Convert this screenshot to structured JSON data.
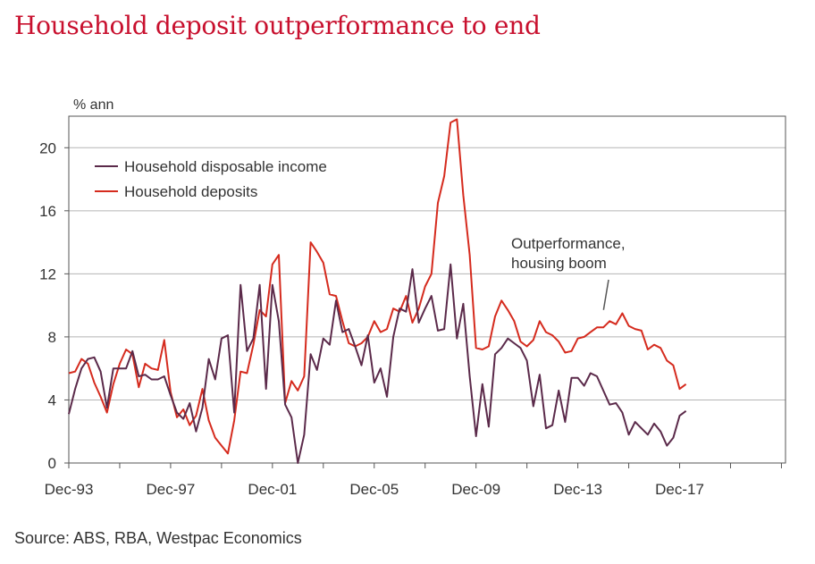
{
  "title": "Household deposit outperformance to end",
  "source": "Source: ABS, RBA, Westpac Economics",
  "chart_data": {
    "type": "line",
    "ylabel": "% ann",
    "ylim": [
      0,
      22
    ],
    "yticks": [
      0,
      4,
      8,
      12,
      16,
      20
    ],
    "xlim": [
      1993.92,
      2022.08
    ],
    "xticks": [
      {
        "label": "Dec-93",
        "x": 1993.92
      },
      {
        "label": "Dec-97",
        "x": 1997.92
      },
      {
        "label": "Dec-01",
        "x": 2001.92
      },
      {
        "label": "Dec-05",
        "x": 2005.92
      },
      {
        "label": "Dec-09",
        "x": 2009.92
      },
      {
        "label": "Dec-13",
        "x": 2013.92
      },
      {
        "label": "Dec-17",
        "x": 2017.92
      }
    ],
    "grid": true,
    "legend_position": "top-left",
    "annotation": {
      "lines": [
        "Outperformance,",
        "housing boom"
      ],
      "x": 2015.0,
      "y": 9.6
    },
    "series": [
      {
        "name": "Household disposable income",
        "color": "#5b2a4a",
        "points": [
          [
            1993.92,
            3.1
          ],
          [
            1994.17,
            4.7
          ],
          [
            1994.42,
            6.0
          ],
          [
            1994.67,
            6.6
          ],
          [
            1994.92,
            6.7
          ],
          [
            1995.17,
            5.8
          ],
          [
            1995.42,
            3.5
          ],
          [
            1995.67,
            6.0
          ],
          [
            1995.92,
            6.0
          ],
          [
            1996.17,
            6.0
          ],
          [
            1996.42,
            7.1
          ],
          [
            1996.67,
            5.5
          ],
          [
            1996.92,
            5.6
          ],
          [
            1997.17,
            5.3
          ],
          [
            1997.42,
            5.3
          ],
          [
            1997.67,
            5.5
          ],
          [
            1997.92,
            4.3
          ],
          [
            1998.17,
            3.2
          ],
          [
            1998.42,
            2.8
          ],
          [
            1998.67,
            3.8
          ],
          [
            1998.92,
            2.0
          ],
          [
            1999.17,
            3.5
          ],
          [
            1999.42,
            6.6
          ],
          [
            1999.67,
            5.3
          ],
          [
            1999.92,
            7.9
          ],
          [
            2000.17,
            8.1
          ],
          [
            2000.42,
            3.2
          ],
          [
            2000.67,
            11.3
          ],
          [
            2000.92,
            7.1
          ],
          [
            2001.17,
            7.9
          ],
          [
            2001.42,
            11.3
          ],
          [
            2001.67,
            4.7
          ],
          [
            2001.92,
            11.3
          ],
          [
            2002.17,
            9.0
          ],
          [
            2002.42,
            3.7
          ],
          [
            2002.67,
            2.9
          ],
          [
            2002.92,
            0.0
          ],
          [
            2003.17,
            1.8
          ],
          [
            2003.42,
            6.9
          ],
          [
            2003.67,
            5.9
          ],
          [
            2003.92,
            7.9
          ],
          [
            2004.17,
            7.5
          ],
          [
            2004.42,
            10.3
          ],
          [
            2004.67,
            8.3
          ],
          [
            2004.92,
            8.5
          ],
          [
            2005.17,
            7.4
          ],
          [
            2005.42,
            6.2
          ],
          [
            2005.67,
            8.1
          ],
          [
            2005.92,
            5.1
          ],
          [
            2006.17,
            6.0
          ],
          [
            2006.42,
            4.2
          ],
          [
            2006.67,
            8.0
          ],
          [
            2006.92,
            9.8
          ],
          [
            2007.17,
            9.6
          ],
          [
            2007.42,
            12.3
          ],
          [
            2007.67,
            8.9
          ],
          [
            2007.92,
            9.8
          ],
          [
            2008.17,
            10.6
          ],
          [
            2008.42,
            8.4
          ],
          [
            2008.67,
            8.5
          ],
          [
            2008.92,
            12.6
          ],
          [
            2009.17,
            7.9
          ],
          [
            2009.42,
            10.1
          ],
          [
            2009.67,
            5.5
          ],
          [
            2009.92,
            1.7
          ],
          [
            2010.17,
            5.0
          ],
          [
            2010.42,
            2.3
          ],
          [
            2010.67,
            6.9
          ],
          [
            2010.92,
            7.3
          ],
          [
            2011.17,
            7.9
          ],
          [
            2011.42,
            7.6
          ],
          [
            2011.67,
            7.3
          ],
          [
            2011.92,
            6.5
          ],
          [
            2012.17,
            3.6
          ],
          [
            2012.42,
            5.6
          ],
          [
            2012.67,
            2.2
          ],
          [
            2012.92,
            2.4
          ],
          [
            2013.17,
            4.6
          ],
          [
            2013.42,
            2.6
          ],
          [
            2013.67,
            5.4
          ],
          [
            2013.92,
            5.4
          ],
          [
            2014.17,
            4.9
          ],
          [
            2014.42,
            5.7
          ],
          [
            2014.67,
            5.5
          ],
          [
            2014.92,
            4.6
          ],
          [
            2015.17,
            3.7
          ],
          [
            2015.42,
            3.8
          ],
          [
            2015.67,
            3.2
          ],
          [
            2015.92,
            1.8
          ],
          [
            2016.17,
            2.6
          ],
          [
            2016.42,
            2.2
          ],
          [
            2016.67,
            1.8
          ],
          [
            2016.92,
            2.5
          ],
          [
            2017.17,
            2.0
          ],
          [
            2017.42,
            1.1
          ],
          [
            2017.67,
            1.6
          ],
          [
            2017.92,
            3.0
          ],
          [
            2018.17,
            3.3
          ]
        ]
      },
      {
        "name": "Household deposits",
        "color": "#d52b1e",
        "points": [
          [
            1993.92,
            5.7
          ],
          [
            1994.17,
            5.8
          ],
          [
            1994.42,
            6.6
          ],
          [
            1994.67,
            6.3
          ],
          [
            1994.92,
            5.1
          ],
          [
            1995.17,
            4.2
          ],
          [
            1995.42,
            3.2
          ],
          [
            1995.67,
            5.0
          ],
          [
            1995.92,
            6.3
          ],
          [
            1996.17,
            7.2
          ],
          [
            1996.42,
            6.9
          ],
          [
            1996.67,
            4.8
          ],
          [
            1996.92,
            6.3
          ],
          [
            1997.17,
            6.0
          ],
          [
            1997.42,
            5.9
          ],
          [
            1997.67,
            7.8
          ],
          [
            1997.92,
            4.5
          ],
          [
            1998.17,
            2.9
          ],
          [
            1998.42,
            3.4
          ],
          [
            1998.67,
            2.4
          ],
          [
            1998.92,
            3.0
          ],
          [
            1999.17,
            4.7
          ],
          [
            1999.42,
            2.7
          ],
          [
            1999.67,
            1.6
          ],
          [
            1999.92,
            1.1
          ],
          [
            2000.17,
            0.6
          ],
          [
            2000.42,
            2.7
          ],
          [
            2000.67,
            5.8
          ],
          [
            2000.92,
            5.7
          ],
          [
            2001.17,
            7.5
          ],
          [
            2001.42,
            9.7
          ],
          [
            2001.67,
            9.3
          ],
          [
            2001.92,
            12.6
          ],
          [
            2002.17,
            13.2
          ],
          [
            2002.42,
            3.8
          ],
          [
            2002.67,
            5.2
          ],
          [
            2002.92,
            4.6
          ],
          [
            2003.17,
            5.5
          ],
          [
            2003.42,
            14.0
          ],
          [
            2003.67,
            13.4
          ],
          [
            2003.92,
            12.7
          ],
          [
            2004.17,
            10.7
          ],
          [
            2004.42,
            10.6
          ],
          [
            2004.67,
            9.0
          ],
          [
            2004.92,
            7.6
          ],
          [
            2005.17,
            7.4
          ],
          [
            2005.42,
            7.6
          ],
          [
            2005.67,
            8.0
          ],
          [
            2005.92,
            9.0
          ],
          [
            2006.17,
            8.3
          ],
          [
            2006.42,
            8.5
          ],
          [
            2006.67,
            9.8
          ],
          [
            2006.92,
            9.6
          ],
          [
            2007.17,
            10.6
          ],
          [
            2007.42,
            8.9
          ],
          [
            2007.67,
            9.8
          ],
          [
            2007.92,
            11.2
          ],
          [
            2008.17,
            12.0
          ],
          [
            2008.42,
            16.5
          ],
          [
            2008.67,
            18.2
          ],
          [
            2008.92,
            21.6
          ],
          [
            2009.17,
            21.8
          ],
          [
            2009.42,
            17.0
          ],
          [
            2009.67,
            13.2
          ],
          [
            2009.92,
            7.3
          ],
          [
            2010.17,
            7.2
          ],
          [
            2010.42,
            7.4
          ],
          [
            2010.67,
            9.3
          ],
          [
            2010.92,
            10.3
          ],
          [
            2011.17,
            9.7
          ],
          [
            2011.42,
            9.0
          ],
          [
            2011.67,
            7.7
          ],
          [
            2011.92,
            7.4
          ],
          [
            2012.17,
            7.8
          ],
          [
            2012.42,
            9.0
          ],
          [
            2012.67,
            8.3
          ],
          [
            2012.92,
            8.1
          ],
          [
            2013.17,
            7.7
          ],
          [
            2013.42,
            7.0
          ],
          [
            2013.67,
            7.1
          ],
          [
            2013.92,
            7.9
          ],
          [
            2014.17,
            8.0
          ],
          [
            2014.42,
            8.3
          ],
          [
            2014.67,
            8.6
          ],
          [
            2014.92,
            8.6
          ],
          [
            2015.17,
            9.0
          ],
          [
            2015.42,
            8.8
          ],
          [
            2015.67,
            9.5
          ],
          [
            2015.92,
            8.7
          ],
          [
            2016.17,
            8.5
          ],
          [
            2016.42,
            8.4
          ],
          [
            2016.67,
            7.2
          ],
          [
            2016.92,
            7.5
          ],
          [
            2017.17,
            7.3
          ],
          [
            2017.42,
            6.5
          ],
          [
            2017.67,
            6.2
          ],
          [
            2017.92,
            4.7
          ],
          [
            2018.17,
            5.0
          ]
        ]
      }
    ]
  }
}
